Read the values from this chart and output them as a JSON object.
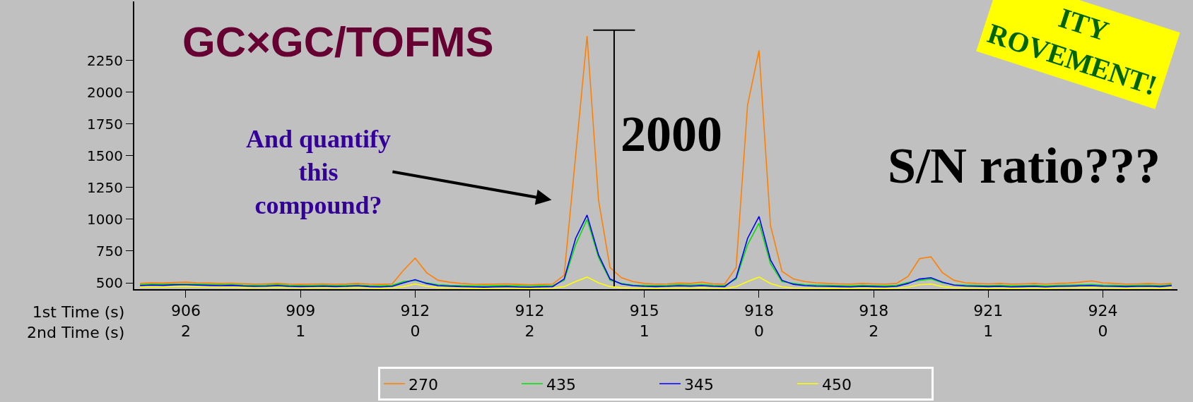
{
  "chart_data": {
    "type": "line",
    "title": "GC×GC/TOFMS",
    "xlabel": "1st Time (s)\n2nd Time (s)",
    "categories": [
      null,
      null,
      null,
      null,
      "906\n2",
      null,
      null,
      null,
      null,
      null,
      null,
      null,
      null,
      null,
      "909\n1",
      null,
      null,
      null,
      null,
      null,
      null,
      null,
      null,
      null,
      "912\n0",
      null,
      null,
      null,
      null,
      null,
      null,
      null,
      null,
      null,
      "912\n2",
      null,
      null,
      null,
      null,
      null,
      null,
      null,
      null,
      null,
      "915\n1",
      null,
      null,
      null,
      null,
      null,
      null,
      null,
      null,
      null,
      "918\n0",
      null,
      null,
      null,
      null,
      null,
      null,
      null,
      null,
      null,
      "918\n2",
      null,
      null,
      null,
      null,
      null,
      null,
      null,
      null,
      null,
      "921\n1",
      null,
      null,
      null,
      null,
      null,
      null,
      null,
      null,
      null,
      "924\n0",
      null,
      null,
      null,
      null,
      null,
      null
    ],
    "series": [
      {
        "name": "270",
        "color": "#ff8000",
        "values": [
          495,
          500,
          498,
          502,
          505,
          500,
          498,
          495,
          497,
          493,
          490,
          492,
          495,
          490,
          488,
          490,
          492,
          489,
          491,
          495,
          490,
          488,
          492,
          600,
          694,
          580,
          520,
          505,
          495,
          490,
          488,
          490,
          492,
          488,
          485,
          487,
          490,
          560,
          1500,
          2443,
          1150,
          620,
          540,
          510,
          495,
          490,
          492,
          498,
          495,
          505,
          492,
          490,
          620,
          1900,
          2330,
          950,
          590,
          530,
          510,
          500,
          495,
          492,
          490,
          495,
          492,
          490,
          495,
          550,
          690,
          705,
          580,
          520,
          500,
          495,
          492,
          495,
          490,
          492,
          495,
          490,
          495,
          498,
          505,
          515,
          500,
          495,
          490,
          492,
          495,
          490,
          495
        ]
      },
      {
        "name": "435",
        "color": "#00e000",
        "values": [
          485,
          488,
          487,
          490,
          490,
          488,
          486,
          485,
          486,
          482,
          480,
          481,
          484,
          480,
          478,
          479,
          481,
          478,
          480,
          482,
          478,
          476,
          480,
          510,
          520,
          500,
          485,
          480,
          478,
          476,
          475,
          477,
          478,
          476,
          474,
          476,
          478,
          520,
          800,
          1000,
          700,
          520,
          496,
          482,
          480,
          478,
          480,
          484,
          482,
          486,
          480,
          478,
          530,
          800,
          970,
          650,
          510,
          496,
          484,
          482,
          480,
          478,
          476,
          480,
          478,
          476,
          480,
          502,
          520,
          530,
          500,
          485,
          482,
          480,
          478,
          480,
          476,
          478,
          480,
          476,
          480,
          482,
          484,
          486,
          482,
          480,
          478,
          480,
          482,
          478,
          484
        ]
      },
      {
        "name": "345",
        "color": "#0000ff",
        "values": [
          478,
          482,
          480,
          484,
          485,
          482,
          480,
          478,
          480,
          475,
          472,
          474,
          478,
          472,
          470,
          471,
          474,
          470,
          472,
          476,
          470,
          468,
          472,
          500,
          525,
          495,
          478,
          474,
          470,
          468,
          466,
          468,
          470,
          467,
          465,
          468,
          470,
          530,
          850,
          1034,
          720,
          530,
          490,
          478,
          472,
          470,
          472,
          476,
          474,
          478,
          472,
          470,
          540,
          850,
          1023,
          680,
          520,
          488,
          478,
          474,
          472,
          470,
          468,
          472,
          470,
          468,
          472,
          495,
          530,
          540,
          505,
          482,
          475,
          472,
          470,
          472,
          468,
          470,
          472,
          468,
          472,
          474,
          476,
          478,
          474,
          472,
          470,
          472,
          474,
          470,
          478
        ]
      },
      {
        "name": "450",
        "color": "#ffff00",
        "values": [
          466,
          468,
          466,
          470,
          470,
          468,
          465,
          464,
          465,
          462,
          460,
          461,
          464,
          460,
          458,
          459,
          461,
          458,
          460,
          462,
          458,
          456,
          460,
          470,
          490,
          472,
          462,
          460,
          458,
          456,
          455,
          457,
          458,
          456,
          455,
          456,
          458,
          470,
          510,
          545,
          500,
          470,
          462,
          458,
          458,
          456,
          458,
          460,
          458,
          462,
          458,
          456,
          470,
          510,
          545,
          495,
          468,
          460,
          458,
          458,
          456,
          456,
          455,
          458,
          456,
          455,
          458,
          465,
          485,
          490,
          470,
          462,
          460,
          458,
          456,
          458,
          455,
          456,
          458,
          455,
          458,
          460,
          462,
          463,
          460,
          458,
          456,
          458,
          460,
          456,
          462
        ]
      }
    ],
    "ylim": [
      450,
      2716
    ],
    "yticks": [
      500,
      750,
      1000,
      1250,
      1500,
      1750,
      2000,
      2250
    ],
    "grid": false,
    "legend": "bottom",
    "annotations": [
      "And quantify\nthis\ncompound?",
      "2000",
      "S/N ratio???",
      "ITY\nROVEMENT!"
    ]
  }
}
